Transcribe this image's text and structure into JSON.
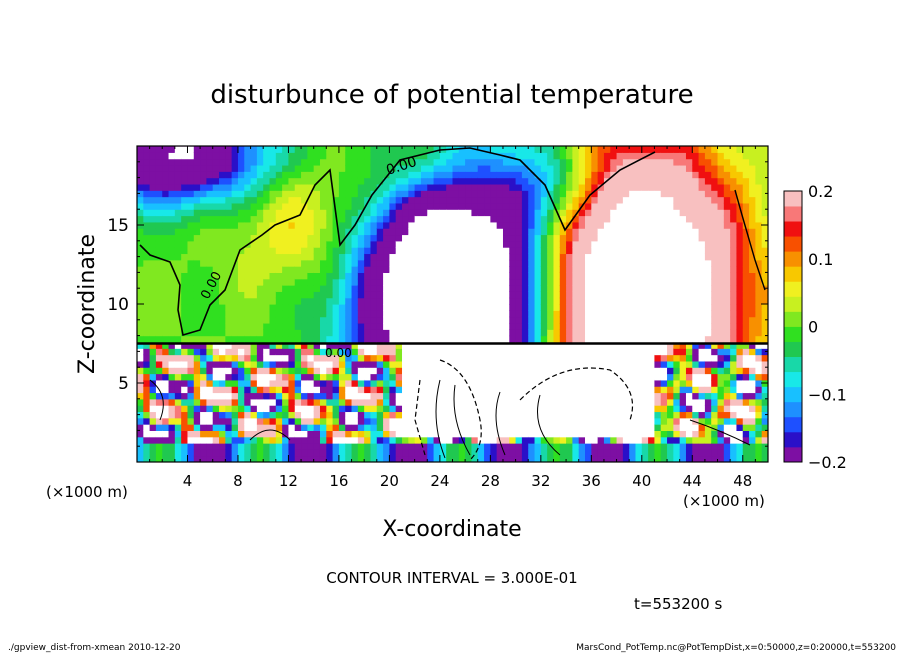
{
  "chart_data": {
    "type": "heatmap",
    "title": "disturbunce of potential temperature",
    "xlabel": "X-coordinate",
    "ylabel": "Z-coordinate",
    "x_unit_left": "(×1000 m)",
    "x_unit_right": "(×1000 m)",
    "xlim": [
      0,
      50
    ],
    "ylim": [
      0,
      20
    ],
    "x_ticks": [
      "4",
      "8",
      "12",
      "16",
      "20",
      "24",
      "28",
      "32",
      "36",
      "40",
      "44",
      "48"
    ],
    "y_ticks": [
      "5",
      "10",
      "15"
    ],
    "contour_label": "0.00",
    "contour_interval_text": "CONTOUR INTERVAL = 3.000E-01",
    "time_text": "t=553200 s",
    "colorbar": {
      "range": [
        -0.2,
        0.2
      ],
      "tick_labels": [
        "0.2",
        "0.1",
        "0",
        "−0.1",
        "−0.2"
      ],
      "colors": [
        "#7d0fa3",
        "#2a10c8",
        "#1e50ff",
        "#1e90ff",
        "#18c0ff",
        "#18e8e8",
        "#18d8a8",
        "#20c850",
        "#30e020",
        "#80e820",
        "#c8f020",
        "#f0f020",
        "#f8c800",
        "#f89000",
        "#f85000",
        "#f01010",
        "#f87878",
        "#f8c0c0"
      ]
    },
    "field_blobs": [
      {
        "x": 25,
        "z": 10.5,
        "rx": 7,
        "rz": 8,
        "amp": -0.55
      },
      {
        "x": 40,
        "z": 10.5,
        "rx": 7,
        "rz": 8.5,
        "amp": 0.55
      },
      {
        "x": 3,
        "z": 19.5,
        "rx": 7,
        "rz": 3,
        "amp": -0.3
      },
      {
        "x": 23,
        "z": 18.5,
        "rx": 5,
        "rz": 3,
        "amp": 0.1
      },
      {
        "x": 14,
        "z": 15,
        "rx": 6,
        "rz": 4,
        "amp": 0.08
      },
      {
        "x": 33,
        "z": 17.5,
        "rx": 4,
        "rz": 3,
        "amp": -0.1
      }
    ],
    "layer_top_z": 7.5
  },
  "footer": {
    "left": "./gpview_dist-from-xmean  2010-12-20",
    "right": "MarsCond_PotTemp.nc@PotTempDist,x=0:50000,z=0:20000,t=553200"
  }
}
